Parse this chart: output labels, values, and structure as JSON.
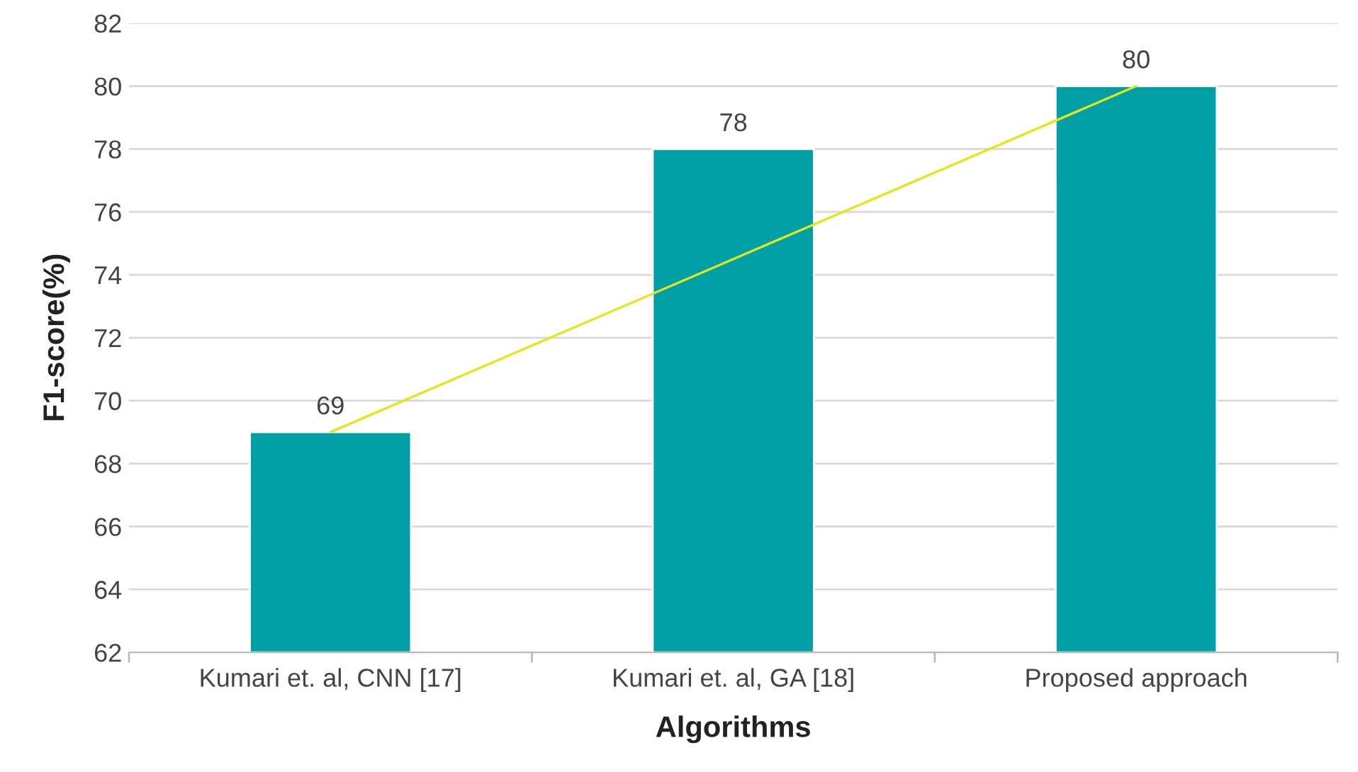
{
  "chart_data": {
    "type": "bar",
    "xlabel": "Algorithms",
    "ylabel": "F1-score(%)",
    "categories": [
      "Kumari et. al, CNN [17]",
      "Kumari et. al, GA [18]",
      "Proposed approach"
    ],
    "series": [
      {
        "color": "#00a0a6",
        "values": [
          69,
          78,
          80
        ],
        "value_labels": [
          "69",
          "78",
          "80"
        ]
      },
      {
        "type": "line",
        "color": "#e5e51a",
        "values": [
          69,
          74.5,
          80
        ]
      }
    ],
    "ylim": [
      62,
      82
    ],
    "yticks": [
      62,
      64,
      66,
      68,
      70,
      72,
      74,
      76,
      78,
      80,
      82
    ],
    "grid": "y",
    "legend": false
  }
}
